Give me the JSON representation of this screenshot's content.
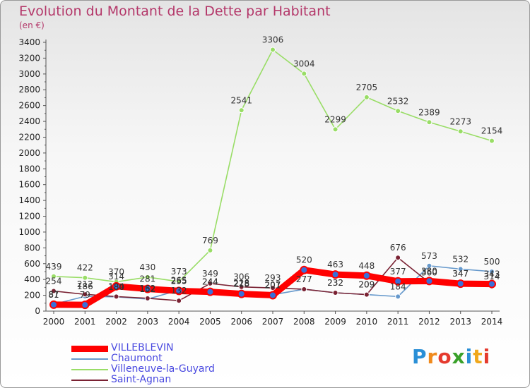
{
  "header": {
    "title": "Evolution du Montant de la Dette par Habitant",
    "unit": "(en €)"
  },
  "chart_data": {
    "type": "line",
    "title": "Evolution du Montant de la Dette par Habitant",
    "ylabel": "(en €)",
    "xlabel": "",
    "x": [
      "2000",
      "2001",
      "2002",
      "2003",
      "2004",
      "2005",
      "2006",
      "2007",
      "2008",
      "2009",
      "2010",
      "2011",
      "2012",
      "2013",
      "2014"
    ],
    "ylim": [
      0,
      3400
    ],
    "yticks": [
      0,
      200,
      400,
      600,
      800,
      1000,
      1200,
      1400,
      1600,
      1800,
      2000,
      2200,
      2400,
      2600,
      2800,
      3000,
      3200,
      3400
    ],
    "grid": false,
    "legend": "bottom-left",
    "series": [
      {
        "name": "Villeneuve-la-Guyard",
        "color": "#99dd66",
        "values": [
          439,
          422,
          370,
          430,
          373,
          769,
          2541,
          3306,
          3004,
          2299,
          2705,
          2532,
          2389,
          2273,
          2154
        ]
      },
      {
        "name": "Chaumont",
        "color": "#6699cc",
        "values": [
          87,
          186,
          180,
          152,
          265,
          244,
          228,
          207,
          277,
          232,
          209,
          184,
          573,
          532,
          500
        ]
      },
      {
        "name": "Saint-Agnan",
        "color": "#7a2233",
        "values": [
          254,
          212,
          184,
          162,
          132,
          349,
          306,
          293,
          277,
          232,
          209,
          676,
          360,
          347,
          314
        ]
      },
      {
        "name": "VILLEBLEVIN",
        "color": "#ff0000",
        "values": [
          81,
          79,
          314,
          281,
          255,
          244,
          218,
          201,
          520,
          463,
          448,
          377,
          380,
          347,
          343
        ]
      }
    ]
  },
  "logo": {
    "text": "Proxiti"
  }
}
